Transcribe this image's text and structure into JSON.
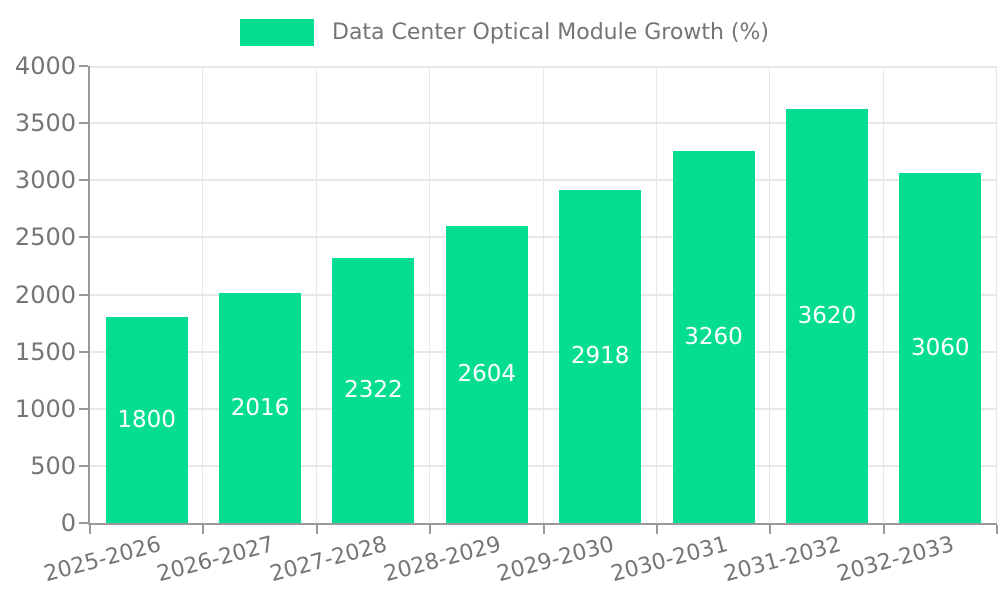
{
  "chart_data": {
    "type": "bar",
    "title": "Data Center Optical Module Growth (%)",
    "categories": [
      "2025-2026",
      "2026-2027",
      "2027-2028",
      "2028-2029",
      "2029-2030",
      "2030-2031",
      "2031-2032",
      "2032-2033"
    ],
    "values": [
      1800,
      2016,
      2322,
      2604,
      2918,
      3260,
      3620,
      3060
    ],
    "xlabel": "",
    "ylabel": "",
    "ylim": [
      0,
      4000
    ],
    "yticks": [
      0,
      500,
      1000,
      1500,
      2000,
      2500,
      3000,
      3500,
      4000
    ],
    "grid": true,
    "legend_position": "top-center",
    "value_label_position": "inside-center",
    "xtick_rotation_deg": 15,
    "colors": {
      "bar": "#05de91",
      "axis": "#999999",
      "gridline": "#e8e8e8",
      "tick_label": "#757575",
      "value_label": "#ffffff",
      "background": "#ffffff"
    }
  }
}
